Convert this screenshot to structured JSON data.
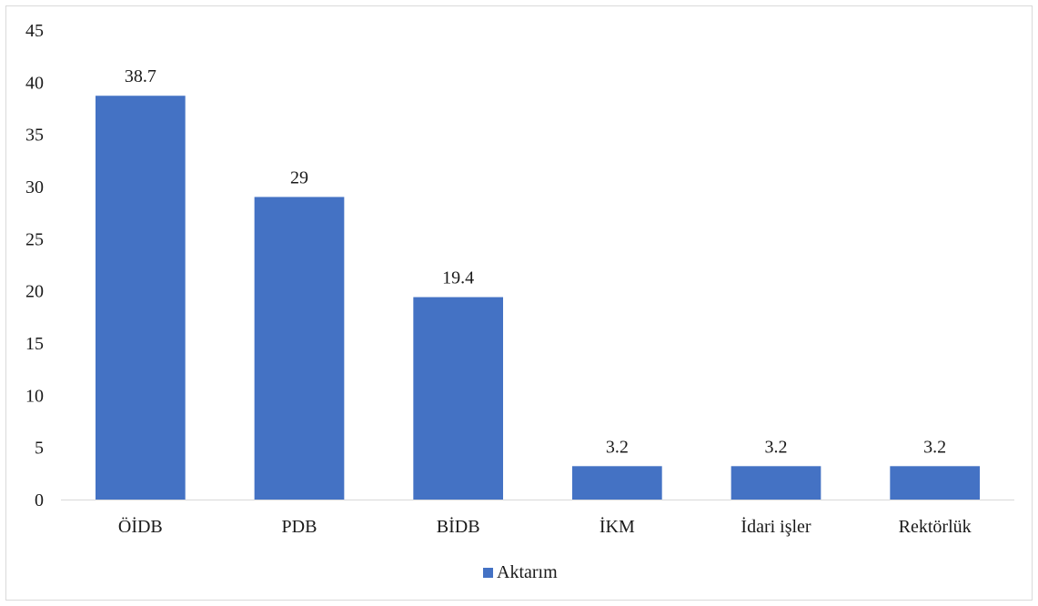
{
  "chart_data": {
    "type": "bar",
    "categories": [
      "ÖİDB",
      "PDB",
      "BİDB",
      "İKM",
      "İdari işler",
      "Rektörlük"
    ],
    "series": [
      {
        "name": "Aktarım",
        "values": [
          38.7,
          29,
          19.4,
          3.2,
          3.2,
          3.2
        ],
        "color": "#4472C4"
      }
    ],
    "data_labels": [
      "38.7",
      "29",
      "19.4",
      "3.2",
      "3.2",
      "3.2"
    ],
    "ylim": [
      0,
      45
    ],
    "yticks": [
      0,
      5,
      10,
      15,
      20,
      25,
      30,
      35,
      40,
      45
    ],
    "grid": false,
    "legend_position": "bottom",
    "title": "",
    "xlabel": "",
    "ylabel": ""
  },
  "colors": {
    "bar": "#4472C4",
    "axis": "#d9d9d9",
    "text": "#1a1a1a"
  }
}
